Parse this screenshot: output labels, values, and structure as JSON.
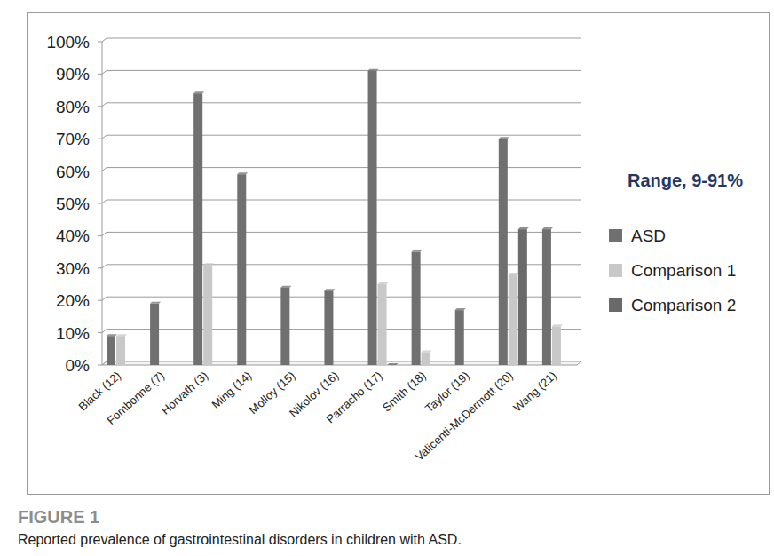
{
  "chart_data": {
    "type": "bar",
    "title": "FIGURE 1",
    "subtitle": "Reported prevalence of gastrointestinal disorders in children with ASD.",
    "annotations": [
      "Range, 9-91%"
    ],
    "categories": [
      "Black (12)",
      "Fombonne (7)",
      "Horvath (3)",
      "Ming (14)",
      "Molloy (15)",
      "Nikolov (16)",
      "Parracho (17)",
      "Smith (18)",
      "Taylor (19)",
      "Valicenti-McDermott (20)",
      "Wang (21)"
    ],
    "series": [
      {
        "name": "ASD",
        "color": "#707070",
        "values": [
          9,
          19,
          84,
          59,
          24,
          23,
          91,
          35,
          17,
          70,
          42
        ]
      },
      {
        "name": "Comparison 1",
        "color": "#c8c8c8",
        "values": [
          9,
          null,
          31,
          null,
          null,
          null,
          25,
          4,
          null,
          28,
          12
        ]
      },
      {
        "name": "Comparison 2",
        "color": "#6a6a6a",
        "values": [
          null,
          null,
          null,
          null,
          null,
          null,
          0,
          null,
          null,
          42,
          null
        ]
      }
    ],
    "ylim": [
      0,
      100
    ],
    "yticks": [
      {
        "value": 0,
        "label": "0%"
      },
      {
        "value": 10,
        "label": "10%"
      },
      {
        "value": 20,
        "label": "20%"
      },
      {
        "value": 30,
        "label": "30%"
      },
      {
        "value": 40,
        "label": "40%"
      },
      {
        "value": 50,
        "label": "50%"
      },
      {
        "value": 60,
        "label": "60%"
      },
      {
        "value": 70,
        "label": "70%"
      },
      {
        "value": 80,
        "label": "80%"
      },
      {
        "value": 90,
        "label": "90%"
      },
      {
        "value": 100,
        "label": "100%"
      }
    ],
    "grid": true,
    "legend": "right"
  }
}
